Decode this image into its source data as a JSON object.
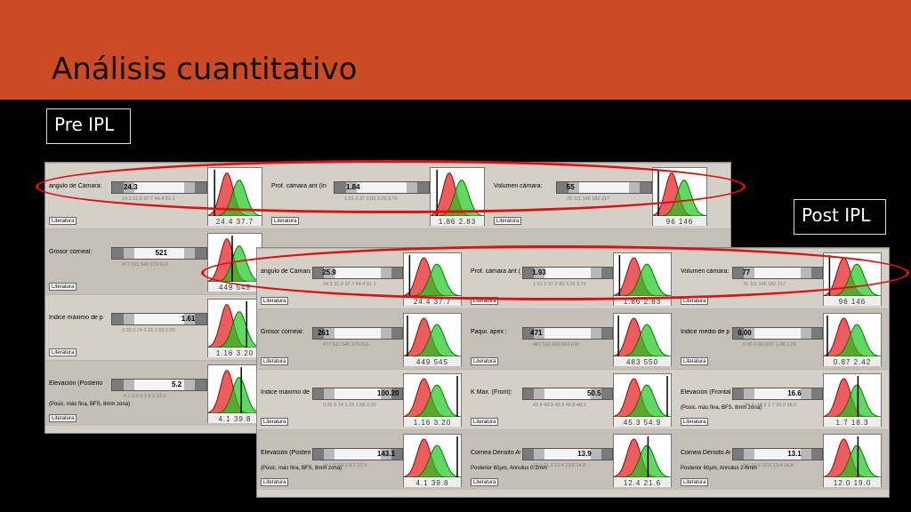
{
  "slide": {
    "title": "Análisis cuantitativo"
  },
  "labels": {
    "pre": "Pre IPL",
    "post": "Post IPL"
  },
  "literatura_label": "Literatura",
  "pre": {
    "rows": [
      [
        {
          "name": "ángulo de Cámara:",
          "value": "24.3",
          "ticks": "24.3 31.0 37.7 44.4 51.1",
          "dist": [
            "24.4",
            "37.7"
          ],
          "pos": 0.12
        },
        {
          "name": "Prof. cámara ant (In",
          "value": "1.84",
          "ticks": "1.91 2.37 2.83 3.29 3.75",
          "dist": [
            "1.86",
            "2.83"
          ],
          "pos": 0.12
        },
        {
          "name": "Volumen cámara:",
          "value": "55",
          "ticks": "76 111 146 182 217",
          "dist": [
            "96",
            "146"
          ],
          "pos": 0.1
        }
      ],
      [
        {
          "name": "Grosor córneal:",
          "value": "521",
          "ticks": "477 511 545 579 614",
          "dist": [
            "449",
            "545"
          ],
          "pos": 0.45
        },
        null,
        null
      ],
      [
        {
          "name": "Indice máximo de p",
          "value": "1.61",
          "ticks": "0.32 0.74 1.16 1.58 2.00",
          "dist": [
            "1.16",
            "3.20"
          ],
          "pos": 0.72
        },
        null,
        null
      ],
      [
        {
          "name": "Elevación (Posterio",
          "value": "5.2",
          "ticks": "-4.1 0.0 4.1 8.2 12.3",
          "dist": [
            "4.1",
            "39.8"
          ],
          "pos": 0.62,
          "note": "(Posic. más fina, BFS, 8mm zona)"
        },
        null,
        null
      ]
    ]
  },
  "post": {
    "rows": [
      [
        {
          "name": "ángulo de Cámara:",
          "value": "25.9",
          "ticks": "24.3 31.0 37.7 44.4 51.1",
          "dist": [
            "24.4",
            "37.7"
          ],
          "pos": 0.1
        },
        {
          "name": "Prof. cámara ant (In",
          "value": "1.93",
          "ticks": "1.91 2.37 2.83 3.29 3.75",
          "dist": [
            "1.86",
            "2.83"
          ],
          "pos": 0.1
        },
        {
          "name": "Volumen cámara:",
          "value": "77",
          "ticks": "76 111 146 182 217",
          "dist": [
            "96",
            "146"
          ],
          "pos": 0.1
        }
      ],
      [
        {
          "name": "Grosor córneal:",
          "value": "261",
          "ticks": "477 511 545 579 614",
          "dist": [
            "449",
            "545"
          ],
          "pos": 0.05
        },
        {
          "name": "Paqui. ápex :",
          "value": "471",
          "ticks": "482 516 550 584 618",
          "dist": [
            "483",
            "550"
          ],
          "pos": 0.08
        },
        {
          "name": "Indice medio de p",
          "value": "0.00",
          "ticks": "0.45 0.66 0.87 1.08 1.29",
          "dist": [
            "0.87",
            "2.42"
          ],
          "pos": 0.05
        }
      ],
      [
        {
          "name": "Indice máximo de p",
          "value": "100.20",
          "ticks": "0.32 0.74 1.15 1.58 2.00",
          "dist": [
            "1.16",
            "3.20"
          ],
          "pos": 0.96
        },
        {
          "name": "K Max. (Front):",
          "value": "50.5",
          "ticks": "42.4 43.9 45.3 46.8 48.2",
          "dist": [
            "45.3",
            "54.9"
          ],
          "pos": 0.96
        },
        {
          "name": "Elevación (Frontal)",
          "value": "16.6",
          "ticks": "-34.9 -16.6 1.7 20.0 38.3",
          "dist": [
            "1.7",
            "18.3"
          ],
          "pos": 0.6,
          "note": "(Posic. más fina, BFS, 8mm zona)"
        }
      ],
      [
        {
          "name": "Elevación (Posterio",
          "value": "143.1",
          "ticks": "-4.1 0.0 4.1 8.2 12.3",
          "dist": [
            "4.1",
            "39.8"
          ],
          "pos": 0.96,
          "note": "(Posic. más fina, BFS, 8mm zona)"
        },
        {
          "name": "Cornea Densito Av",
          "value": "13.9",
          "ticks": "10.0 11.2 12.4 13.6 14.8",
          "dist": [
            "12.4",
            "21.6"
          ],
          "pos": 0.6,
          "note": "Posterior 60µm, Annulus 0-2mm"
        },
        {
          "name": "Cornea Densito Av",
          "value": "13.1",
          "ticks": "9.2 10.6 12.0 13.4 14.8",
          "dist": [
            "12.0",
            "19.0"
          ],
          "pos": 0.6,
          "note": "Posterior 60µm, Annulus 2-6mm"
        }
      ]
    ]
  }
}
